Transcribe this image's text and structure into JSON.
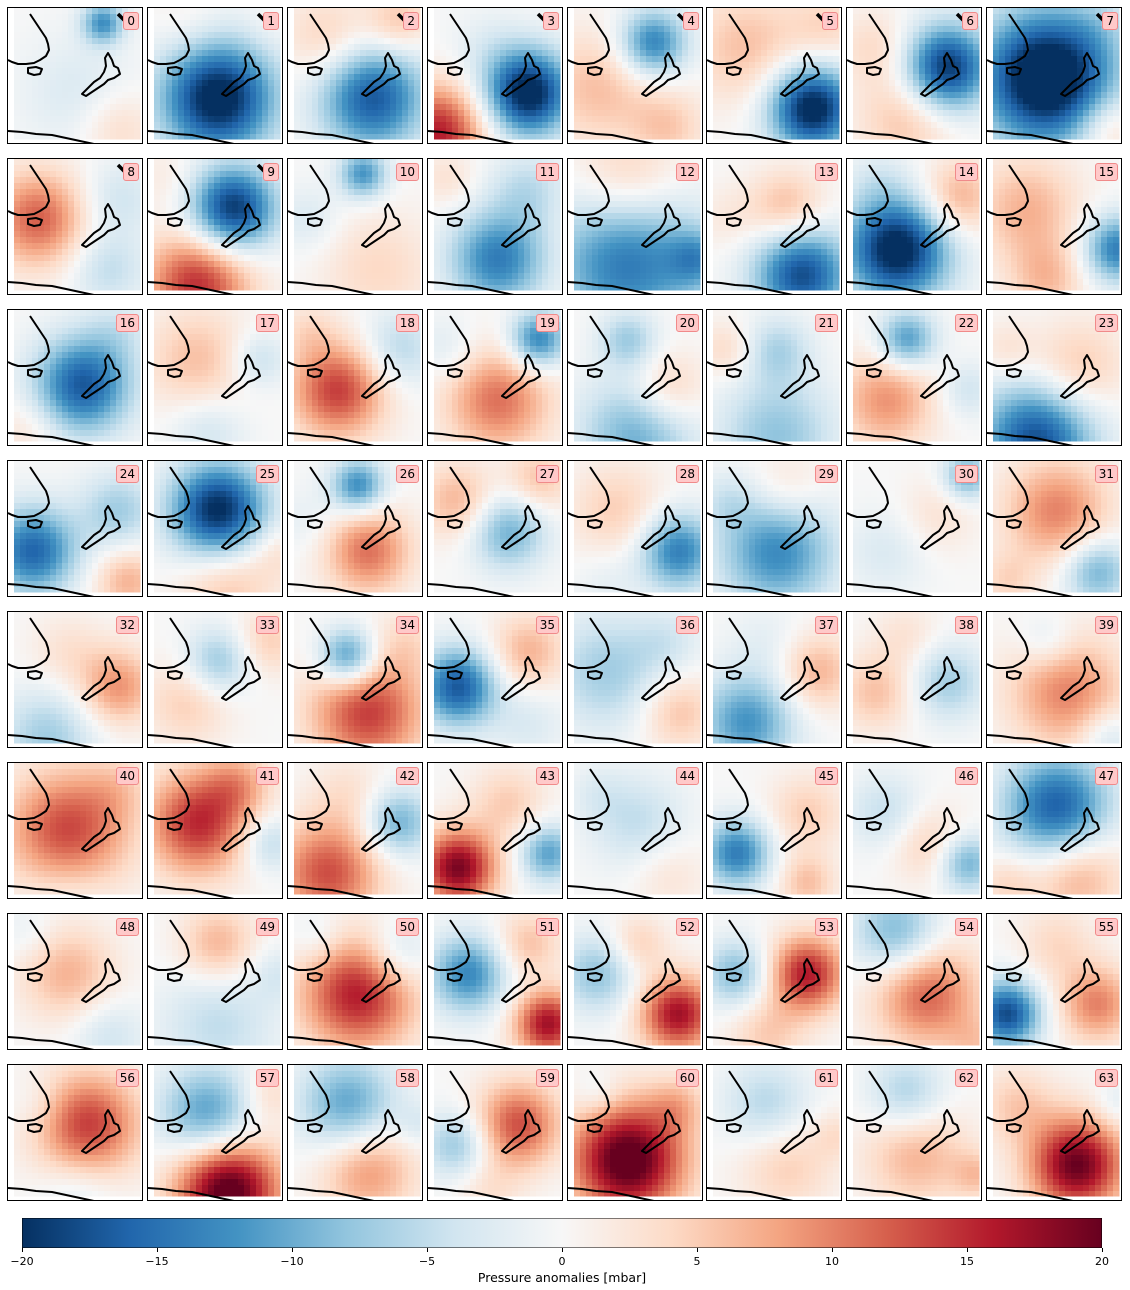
{
  "panels": [
    {
      "id": "0",
      "label": "0",
      "blobs": [
        [
          95,
          15,
          22,
          -12
        ],
        [
          70,
          85,
          60,
          -3
        ],
        [
          110,
          120,
          40,
          4
        ]
      ]
    },
    {
      "id": "1",
      "label": "1",
      "blobs": [
        [
          70,
          90,
          60,
          -22
        ],
        [
          40,
          20,
          40,
          2
        ],
        [
          120,
          20,
          30,
          1
        ]
      ]
    },
    {
      "id": "2",
      "label": "2",
      "blobs": [
        [
          85,
          90,
          55,
          -17
        ],
        [
          40,
          30,
          45,
          5
        ],
        [
          110,
          15,
          35,
          6
        ]
      ]
    },
    {
      "id": "3",
      "label": "3",
      "blobs": [
        [
          100,
          85,
          45,
          -22
        ],
        [
          10,
          125,
          50,
          16
        ],
        [
          60,
          40,
          40,
          -2
        ]
      ]
    },
    {
      "id": "4",
      "label": "4",
      "blobs": [
        [
          85,
          35,
          35,
          -14
        ],
        [
          30,
          80,
          60,
          6
        ],
        [
          100,
          120,
          40,
          5
        ]
      ]
    },
    {
      "id": "5",
      "label": "5",
      "blobs": [
        [
          105,
          100,
          45,
          -22
        ],
        [
          40,
          40,
          60,
          6
        ],
        [
          120,
          20,
          40,
          4
        ]
      ]
    },
    {
      "id": "6",
      "label": "6",
      "blobs": [
        [
          100,
          60,
          45,
          -20
        ],
        [
          30,
          40,
          40,
          4
        ],
        [
          60,
          110,
          50,
          6
        ]
      ]
    },
    {
      "id": "7",
      "label": "7",
      "blobs": [
        [
          60,
          70,
          70,
          -25
        ],
        [
          120,
          120,
          35,
          6
        ],
        [
          110,
          20,
          35,
          -2
        ]
      ]
    },
    {
      "id": "8",
      "label": "8",
      "blobs": [
        [
          30,
          60,
          50,
          12
        ],
        [
          110,
          40,
          40,
          -4
        ],
        [
          100,
          110,
          40,
          -5
        ]
      ]
    },
    {
      "id": "9",
      "label": "9",
      "blobs": [
        [
          85,
          50,
          45,
          -20
        ],
        [
          50,
          125,
          55,
          15
        ],
        [
          20,
          20,
          35,
          2
        ]
      ]
    },
    {
      "id": "10",
      "label": "10",
      "blobs": [
        [
          75,
          15,
          25,
          -12
        ],
        [
          90,
          110,
          60,
          4
        ],
        [
          20,
          60,
          35,
          -3
        ]
      ]
    },
    {
      "id": "11",
      "label": "11",
      "blobs": [
        [
          70,
          100,
          50,
          -14
        ],
        [
          100,
          30,
          40,
          -5
        ],
        [
          20,
          20,
          30,
          3
        ]
      ]
    },
    {
      "id": "12",
      "label": "12",
      "blobs": [
        [
          60,
          100,
          80,
          -15
        ],
        [
          60,
          25,
          60,
          7
        ],
        [
          130,
          100,
          30,
          -8
        ]
      ]
    },
    {
      "id": "13",
      "label": "13",
      "blobs": [
        [
          95,
          115,
          50,
          -18
        ],
        [
          80,
          50,
          40,
          7
        ],
        [
          20,
          60,
          35,
          2
        ]
      ]
    },
    {
      "id": "14",
      "label": "14",
      "blobs": [
        [
          50,
          90,
          55,
          -22
        ],
        [
          110,
          40,
          40,
          8
        ],
        [
          30,
          20,
          30,
          -2
        ]
      ]
    },
    {
      "id": "15",
      "label": "15",
      "blobs": [
        [
          130,
          90,
          35,
          -14
        ],
        [
          40,
          50,
          55,
          7
        ],
        [
          60,
          120,
          40,
          6
        ]
      ]
    },
    {
      "id": "16",
      "label": "16",
      "blobs": [
        [
          75,
          75,
          50,
          -17
        ],
        [
          110,
          20,
          35,
          -3
        ],
        [
          20,
          120,
          35,
          3
        ]
      ]
    },
    {
      "id": "17",
      "label": "17",
      "blobs": [
        [
          50,
          50,
          55,
          6
        ],
        [
          110,
          50,
          30,
          -5
        ],
        [
          60,
          120,
          40,
          -4
        ]
      ]
    },
    {
      "id": "18",
      "label": "18",
      "blobs": [
        [
          50,
          80,
          50,
          14
        ],
        [
          110,
          40,
          40,
          -6
        ],
        [
          20,
          20,
          30,
          3
        ]
      ]
    },
    {
      "id": "19",
      "label": "19",
      "blobs": [
        [
          110,
          30,
          30,
          -14
        ],
        [
          70,
          90,
          55,
          11
        ],
        [
          20,
          40,
          35,
          -3
        ]
      ]
    },
    {
      "id": "20",
      "label": "20",
      "blobs": [
        [
          60,
          30,
          30,
          -7
        ],
        [
          70,
          125,
          60,
          -10
        ],
        [
          100,
          80,
          40,
          6
        ]
      ]
    },
    {
      "id": "21",
      "label": "21",
      "blobs": [
        [
          70,
          40,
          35,
          -6
        ],
        [
          70,
          125,
          60,
          -8
        ],
        [
          20,
          40,
          30,
          4
        ]
      ]
    },
    {
      "id": "22",
      "label": "22",
      "blobs": [
        [
          60,
          30,
          30,
          -12
        ],
        [
          40,
          90,
          50,
          9
        ],
        [
          120,
          80,
          30,
          -4
        ]
      ]
    },
    {
      "id": "23",
      "label": "23",
      "blobs": [
        [
          50,
          130,
          60,
          -18
        ],
        [
          90,
          60,
          50,
          6
        ],
        [
          20,
          40,
          30,
          3
        ]
      ]
    },
    {
      "id": "24",
      "label": "24",
      "blobs": [
        [
          25,
          90,
          45,
          -16
        ],
        [
          110,
          50,
          40,
          -7
        ],
        [
          120,
          120,
          35,
          7
        ]
      ]
    },
    {
      "id": "25",
      "label": "25",
      "blobs": [
        [
          70,
          50,
          50,
          -21
        ],
        [
          80,
          120,
          50,
          6
        ],
        [
          130,
          90,
          30,
          3
        ]
      ]
    },
    {
      "id": "26",
      "label": "26",
      "blobs": [
        [
          70,
          25,
          28,
          -13
        ],
        [
          80,
          90,
          45,
          11
        ],
        [
          20,
          60,
          35,
          -2
        ]
      ]
    },
    {
      "id": "27",
      "label": "27",
      "blobs": [
        [
          80,
          70,
          40,
          -10
        ],
        [
          30,
          40,
          40,
          7
        ],
        [
          110,
          20,
          35,
          6
        ]
      ]
    },
    {
      "id": "28",
      "label": "28",
      "blobs": [
        [
          110,
          90,
          40,
          -14
        ],
        [
          50,
          50,
          50,
          5
        ],
        [
          40,
          120,
          35,
          -2
        ]
      ]
    },
    {
      "id": "29",
      "label": "29",
      "blobs": [
        [
          70,
          90,
          60,
          -13
        ],
        [
          80,
          30,
          40,
          4
        ],
        [
          20,
          40,
          30,
          -3
        ]
      ]
    },
    {
      "id": "30",
      "label": "30",
      "blobs": [
        [
          120,
          15,
          25,
          -10
        ],
        [
          90,
          55,
          40,
          3
        ],
        [
          40,
          90,
          45,
          -3
        ]
      ]
    },
    {
      "id": "31",
      "label": "31",
      "blobs": [
        [
          70,
          50,
          55,
          10
        ],
        [
          110,
          110,
          35,
          -10
        ],
        [
          20,
          120,
          30,
          4
        ]
      ]
    },
    {
      "id": "32",
      "label": "32",
      "blobs": [
        [
          110,
          75,
          40,
          9
        ],
        [
          40,
          125,
          50,
          -7
        ],
        [
          60,
          40,
          40,
          3
        ]
      ]
    },
    {
      "id": "33",
      "label": "33",
      "blobs": [
        [
          70,
          50,
          35,
          -8
        ],
        [
          40,
          90,
          45,
          5
        ],
        [
          120,
          30,
          35,
          5
        ]
      ]
    },
    {
      "id": "34",
      "label": "34",
      "blobs": [
        [
          60,
          45,
          30,
          -14
        ],
        [
          80,
          100,
          60,
          14
        ],
        [
          120,
          30,
          35,
          3
        ]
      ]
    },
    {
      "id": "35",
      "label": "35",
      "blobs": [
        [
          30,
          75,
          40,
          -17
        ],
        [
          100,
          40,
          40,
          7
        ],
        [
          100,
          110,
          40,
          -3
        ]
      ]
    },
    {
      "id": "36",
      "label": "36",
      "blobs": [
        [
          40,
          60,
          60,
          -7
        ],
        [
          110,
          100,
          40,
          6
        ],
        [
          100,
          30,
          35,
          -3
        ]
      ]
    },
    {
      "id": "37",
      "label": "37",
      "blobs": [
        [
          40,
          110,
          50,
          -12
        ],
        [
          110,
          60,
          40,
          7
        ],
        [
          60,
          30,
          40,
          -2
        ]
      ]
    },
    {
      "id": "38",
      "label": "38",
      "blobs": [
        [
          100,
          70,
          40,
          -7
        ],
        [
          30,
          80,
          40,
          6
        ],
        [
          60,
          25,
          35,
          3
        ]
      ]
    },
    {
      "id": "39",
      "label": "39",
      "blobs": [
        [
          80,
          80,
          60,
          10
        ],
        [
          60,
          30,
          30,
          -4
        ],
        [
          120,
          125,
          30,
          -5
        ]
      ]
    },
    {
      "id": "40",
      "label": "40",
      "blobs": [
        [
          60,
          70,
          65,
          14
        ],
        [
          110,
          25,
          35,
          3
        ],
        [
          60,
          125,
          50,
          -3
        ]
      ]
    },
    {
      "id": "41",
      "label": "41",
      "blobs": [
        [
          50,
          60,
          55,
          15
        ],
        [
          120,
          80,
          30,
          -6
        ],
        [
          90,
          20,
          35,
          6
        ]
      ]
    },
    {
      "id": "42",
      "label": "42",
      "blobs": [
        [
          40,
          110,
          55,
          13
        ],
        [
          110,
          60,
          35,
          -10
        ],
        [
          60,
          30,
          40,
          3
        ]
      ]
    },
    {
      "id": "43",
      "label": "43",
      "blobs": [
        [
          30,
          105,
          40,
          19
        ],
        [
          120,
          90,
          30,
          -11
        ],
        [
          80,
          40,
          40,
          5
        ]
      ]
    },
    {
      "id": "44",
      "label": "44",
      "blobs": [
        [
          70,
          60,
          50,
          -5
        ],
        [
          100,
          110,
          40,
          3
        ],
        [
          30,
          30,
          30,
          -2
        ]
      ]
    },
    {
      "id": "45",
      "label": "45",
      "blobs": [
        [
          30,
          90,
          35,
          -14
        ],
        [
          100,
          50,
          40,
          5
        ],
        [
          100,
          120,
          30,
          6
        ]
      ]
    },
    {
      "id": "46",
      "label": "46",
      "blobs": [
        [
          120,
          100,
          30,
          -10
        ],
        [
          40,
          50,
          40,
          -5
        ],
        [
          80,
          80,
          40,
          5
        ]
      ]
    },
    {
      "id": "47",
      "label": "47",
      "blobs": [
        [
          70,
          45,
          55,
          -17
        ],
        [
          90,
          110,
          50,
          8
        ],
        [
          20,
          120,
          30,
          4
        ]
      ]
    },
    {
      "id": "48",
      "label": "48",
      "blobs": [
        [
          60,
          60,
          50,
          7
        ],
        [
          100,
          120,
          40,
          -4
        ],
        [
          20,
          20,
          30,
          -2
        ]
      ]
    },
    {
      "id": "49",
      "label": "49",
      "blobs": [
        [
          70,
          30,
          40,
          7
        ],
        [
          70,
          110,
          60,
          -5
        ],
        [
          130,
          60,
          30,
          -3
        ]
      ]
    },
    {
      "id": "50",
      "label": "50",
      "blobs": [
        [
          70,
          80,
          60,
          16
        ],
        [
          110,
          40,
          35,
          -6
        ],
        [
          30,
          25,
          30,
          -3
        ]
      ]
    },
    {
      "id": "51",
      "label": "51",
      "blobs": [
        [
          40,
          60,
          40,
          -13
        ],
        [
          120,
          110,
          35,
          17
        ],
        [
          100,
          30,
          35,
          6
        ]
      ]
    },
    {
      "id": "52",
      "label": "52",
      "blobs": [
        [
          110,
          100,
          40,
          17
        ],
        [
          30,
          60,
          40,
          -8
        ],
        [
          70,
          30,
          30,
          5
        ]
      ]
    },
    {
      "id": "53",
      "label": "53",
      "blobs": [
        [
          100,
          60,
          40,
          16
        ],
        [
          30,
          60,
          35,
          -9
        ],
        [
          60,
          120,
          40,
          5
        ]
      ]
    },
    {
      "id": "54",
      "label": "54",
      "blobs": [
        [
          80,
          80,
          55,
          12
        ],
        [
          50,
          20,
          45,
          -10
        ],
        [
          130,
          130,
          30,
          4
        ]
      ]
    },
    {
      "id": "55",
      "label": "55",
      "blobs": [
        [
          20,
          100,
          35,
          -18
        ],
        [
          110,
          90,
          40,
          10
        ],
        [
          70,
          30,
          40,
          4
        ]
      ]
    },
    {
      "id": "56",
      "label": "56",
      "blobs": [
        [
          80,
          60,
          55,
          14
        ],
        [
          30,
          40,
          30,
          -2
        ],
        [
          70,
          125,
          40,
          -3
        ]
      ]
    },
    {
      "id": "57",
      "label": "57",
      "blobs": [
        [
          80,
          125,
          55,
          22
        ],
        [
          60,
          50,
          50,
          -12
        ],
        [
          120,
          30,
          30,
          4
        ]
      ]
    },
    {
      "id": "58",
      "label": "58",
      "blobs": [
        [
          60,
          40,
          50,
          -11
        ],
        [
          80,
          105,
          50,
          9
        ],
        [
          130,
          60,
          25,
          -3
        ]
      ]
    },
    {
      "id": "59",
      "label": "59",
      "blobs": [
        [
          90,
          60,
          45,
          13
        ],
        [
          30,
          80,
          35,
          -8
        ],
        [
          60,
          125,
          35,
          3
        ]
      ]
    },
    {
      "id": "60",
      "label": "60",
      "blobs": [
        [
          60,
          95,
          60,
          22
        ],
        [
          110,
          40,
          30,
          5
        ],
        [
          30,
          30,
          25,
          -3
        ]
      ]
    },
    {
      "id": "61",
      "label": "61",
      "blobs": [
        [
          60,
          40,
          45,
          -6
        ],
        [
          80,
          100,
          50,
          5
        ],
        [
          130,
          70,
          25,
          3
        ]
      ]
    },
    {
      "id": "62",
      "label": "62",
      "blobs": [
        [
          70,
          90,
          55,
          7
        ],
        [
          60,
          30,
          40,
          -7
        ],
        [
          130,
          110,
          25,
          5
        ]
      ]
    },
    {
      "id": "63",
      "label": "63",
      "blobs": [
        [
          90,
          100,
          50,
          20
        ],
        [
          30,
          40,
          40,
          5
        ],
        [
          130,
          40,
          25,
          -3
        ]
      ]
    }
  ],
  "colorbar": {
    "label": "Pressure anomalies [mbar]",
    "min": -20,
    "max": 20,
    "ticks": [
      "−20",
      "−15",
      "−10",
      "−5",
      "0",
      "5",
      "10",
      "15",
      "20"
    ],
    "colors": [
      "#053061",
      "#2166ac",
      "#4393c3",
      "#92c5de",
      "#d1e5f0",
      "#f7f7f7",
      "#fddbc7",
      "#f4a582",
      "#d6604d",
      "#b2182b",
      "#67001f"
    ]
  }
}
